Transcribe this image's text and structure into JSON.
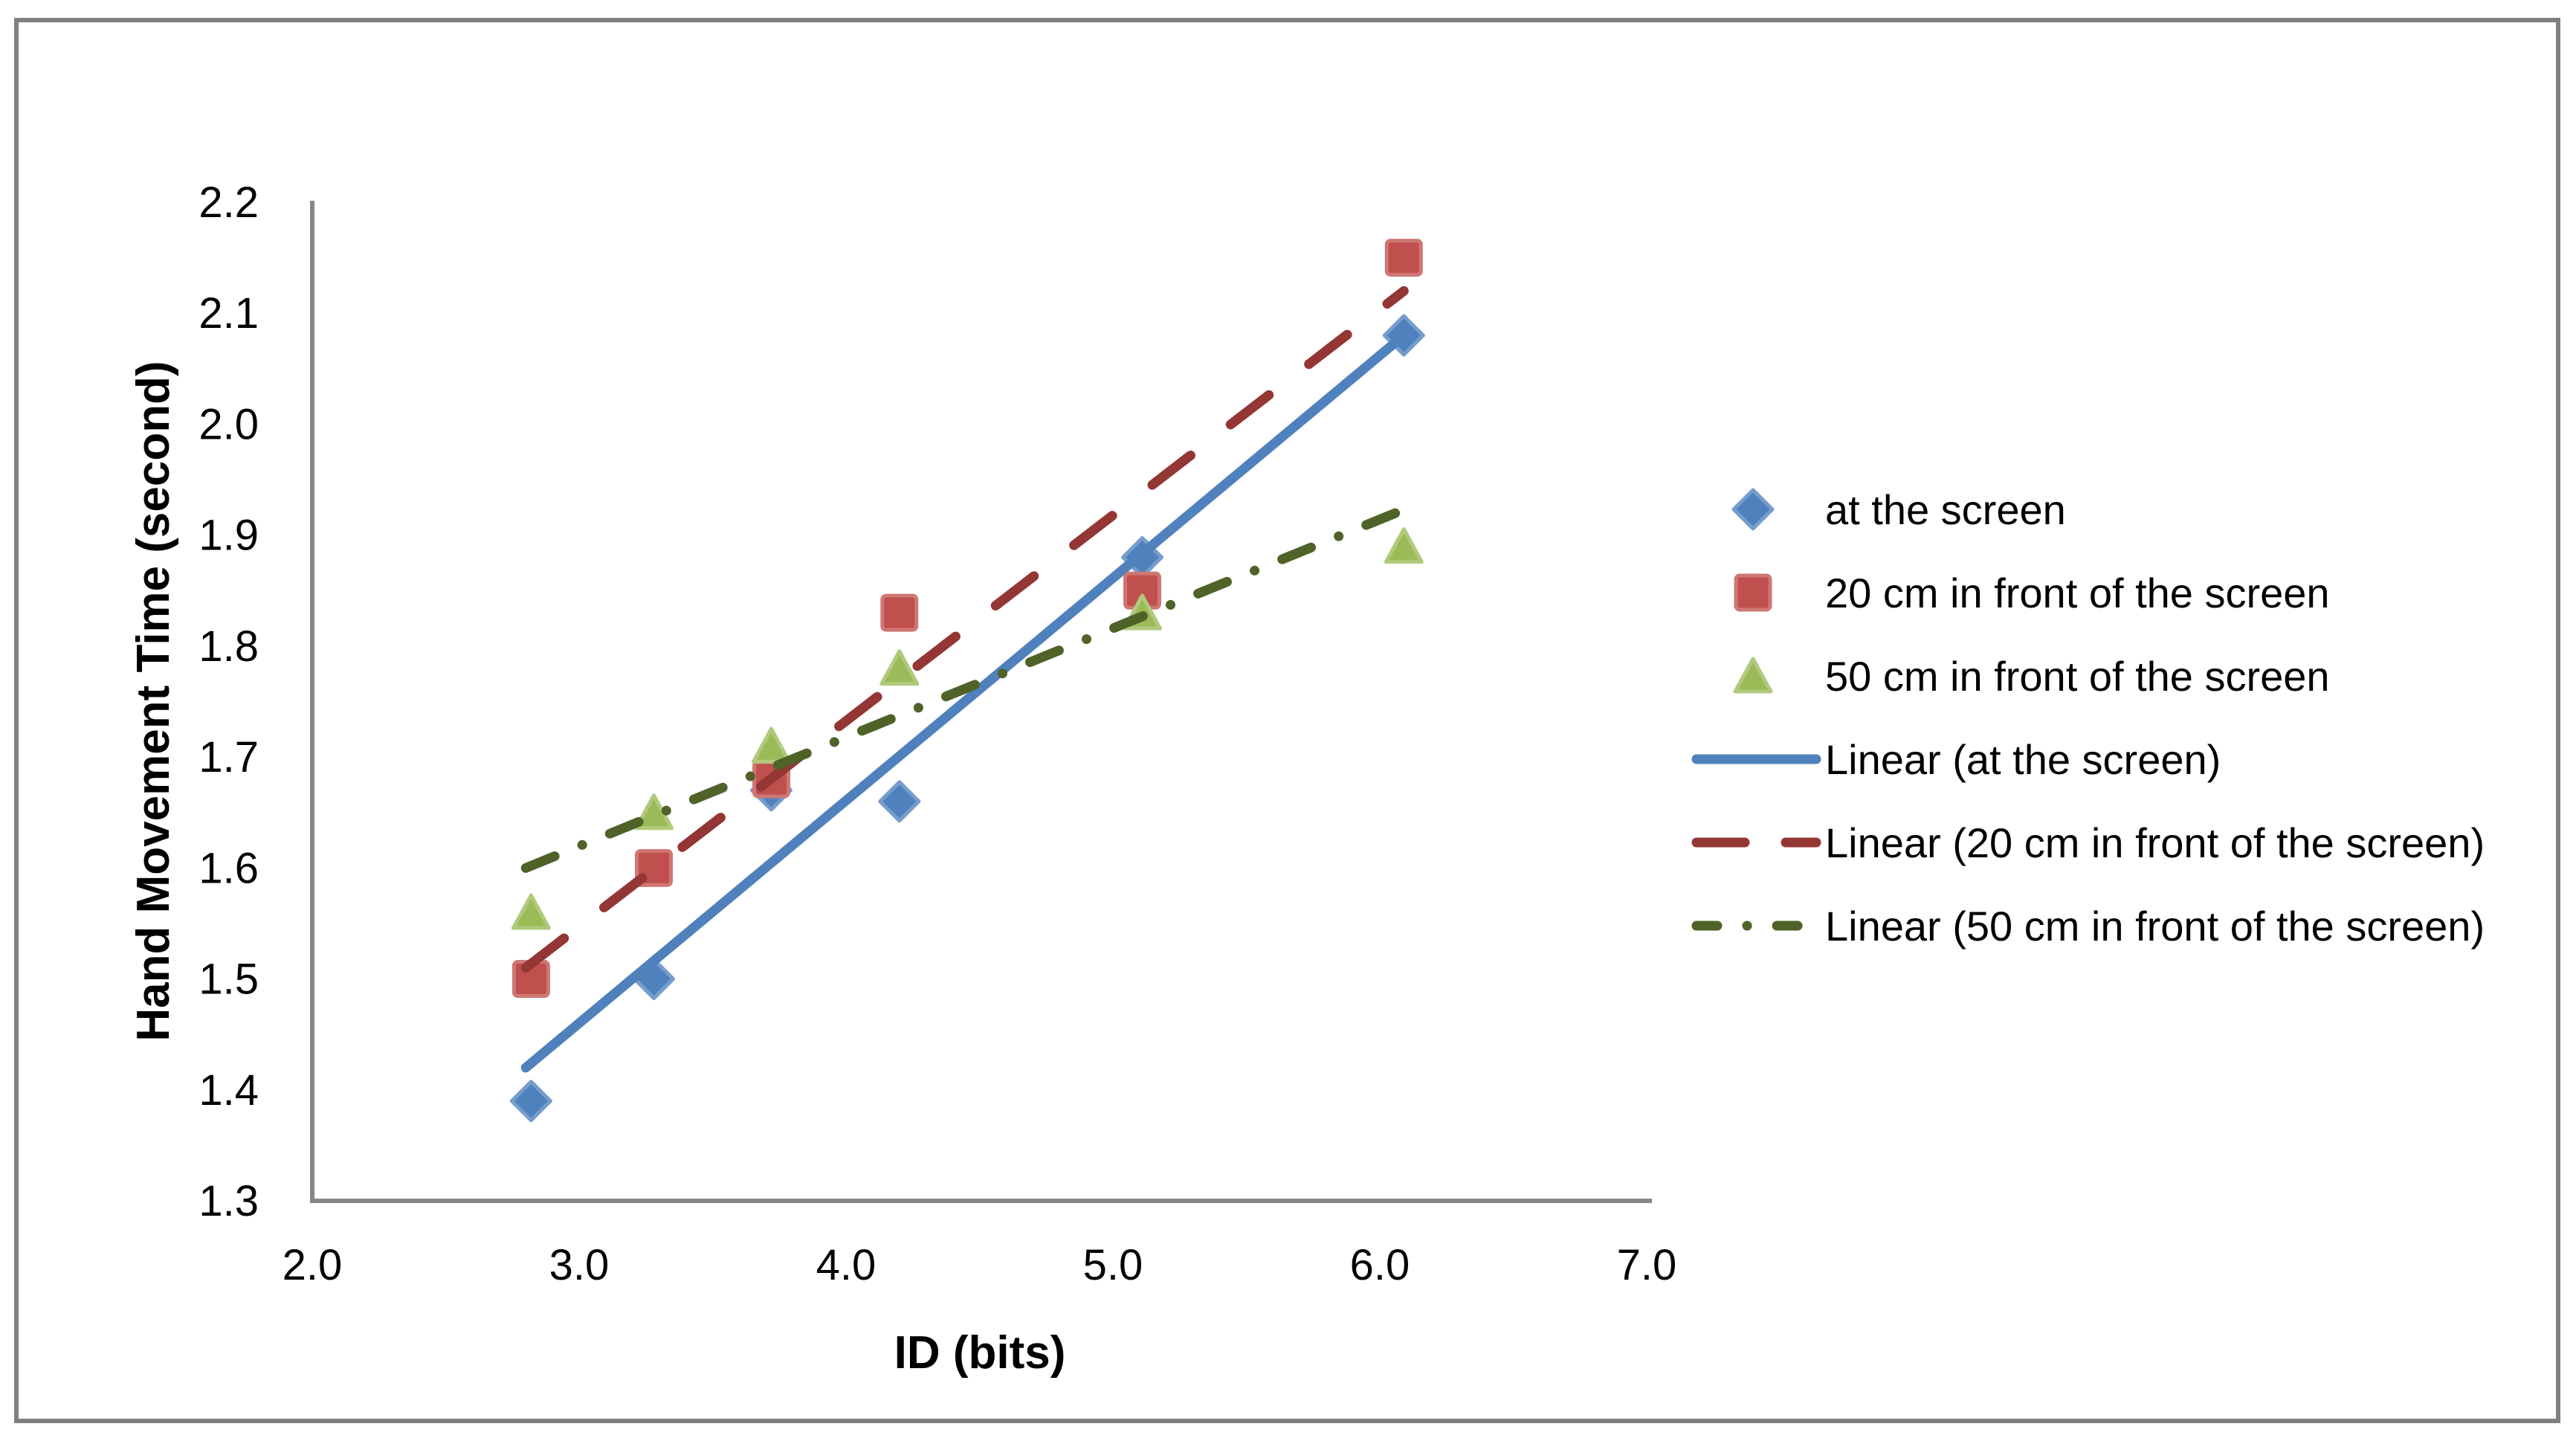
{
  "chart_data": {
    "type": "scatter",
    "title": "",
    "xlabel": "ID (bits)",
    "ylabel": "Hand Movement Time  (second)",
    "xlim": [
      2.0,
      7.0
    ],
    "ylim": [
      1.3,
      2.2
    ],
    "x_ticks": [
      "2.0",
      "3.0",
      "4.0",
      "5.0",
      "6.0",
      "7.0"
    ],
    "y_ticks": [
      "1.3",
      "1.4",
      "1.5",
      "1.6",
      "1.7",
      "1.8",
      "1.9",
      "2.0",
      "2.1",
      "2.2"
    ],
    "grid": false,
    "legend_position": "right",
    "axis_color": "#878787",
    "text_color": "#000000",
    "series": [
      {
        "name": "at the screen",
        "marker": "diamond",
        "color": "#4F81BD",
        "x": [
          2.82,
          3.28,
          3.72,
          4.2,
          5.11,
          6.09
        ],
        "y": [
          1.39,
          1.5,
          1.67,
          1.66,
          1.88,
          2.08
        ]
      },
      {
        "name": "20 cm in front of the screen",
        "marker": "square",
        "color": "#C0504D",
        "x": [
          2.82,
          3.28,
          3.72,
          4.2,
          5.11,
          6.09
        ],
        "y": [
          1.5,
          1.6,
          1.68,
          1.83,
          1.85,
          2.15
        ]
      },
      {
        "name": "50 cm in front of the screen",
        "marker": "triangle",
        "color": "#9BBB59",
        "x": [
          2.82,
          3.28,
          3.72,
          4.2,
          5.11,
          6.09
        ],
        "y": [
          1.56,
          1.65,
          1.71,
          1.78,
          1.83,
          1.89
        ]
      }
    ],
    "trendlines": [
      {
        "name": "Linear (at the screen)",
        "color": "#4F81BD",
        "style": "solid",
        "from": [
          2.8,
          1.42
        ],
        "to": [
          6.09,
          2.08
        ]
      },
      {
        "name": "Linear (20 cm in front of the screen)",
        "color": "#943634",
        "style": "dash",
        "from": [
          2.8,
          1.51
        ],
        "to": [
          6.09,
          2.12
        ]
      },
      {
        "name": "Linear (50 cm in front of the screen)",
        "color": "#4F6228",
        "style": "dashdot",
        "from": [
          2.8,
          1.6
        ],
        "to": [
          6.06,
          1.92
        ]
      }
    ]
  }
}
